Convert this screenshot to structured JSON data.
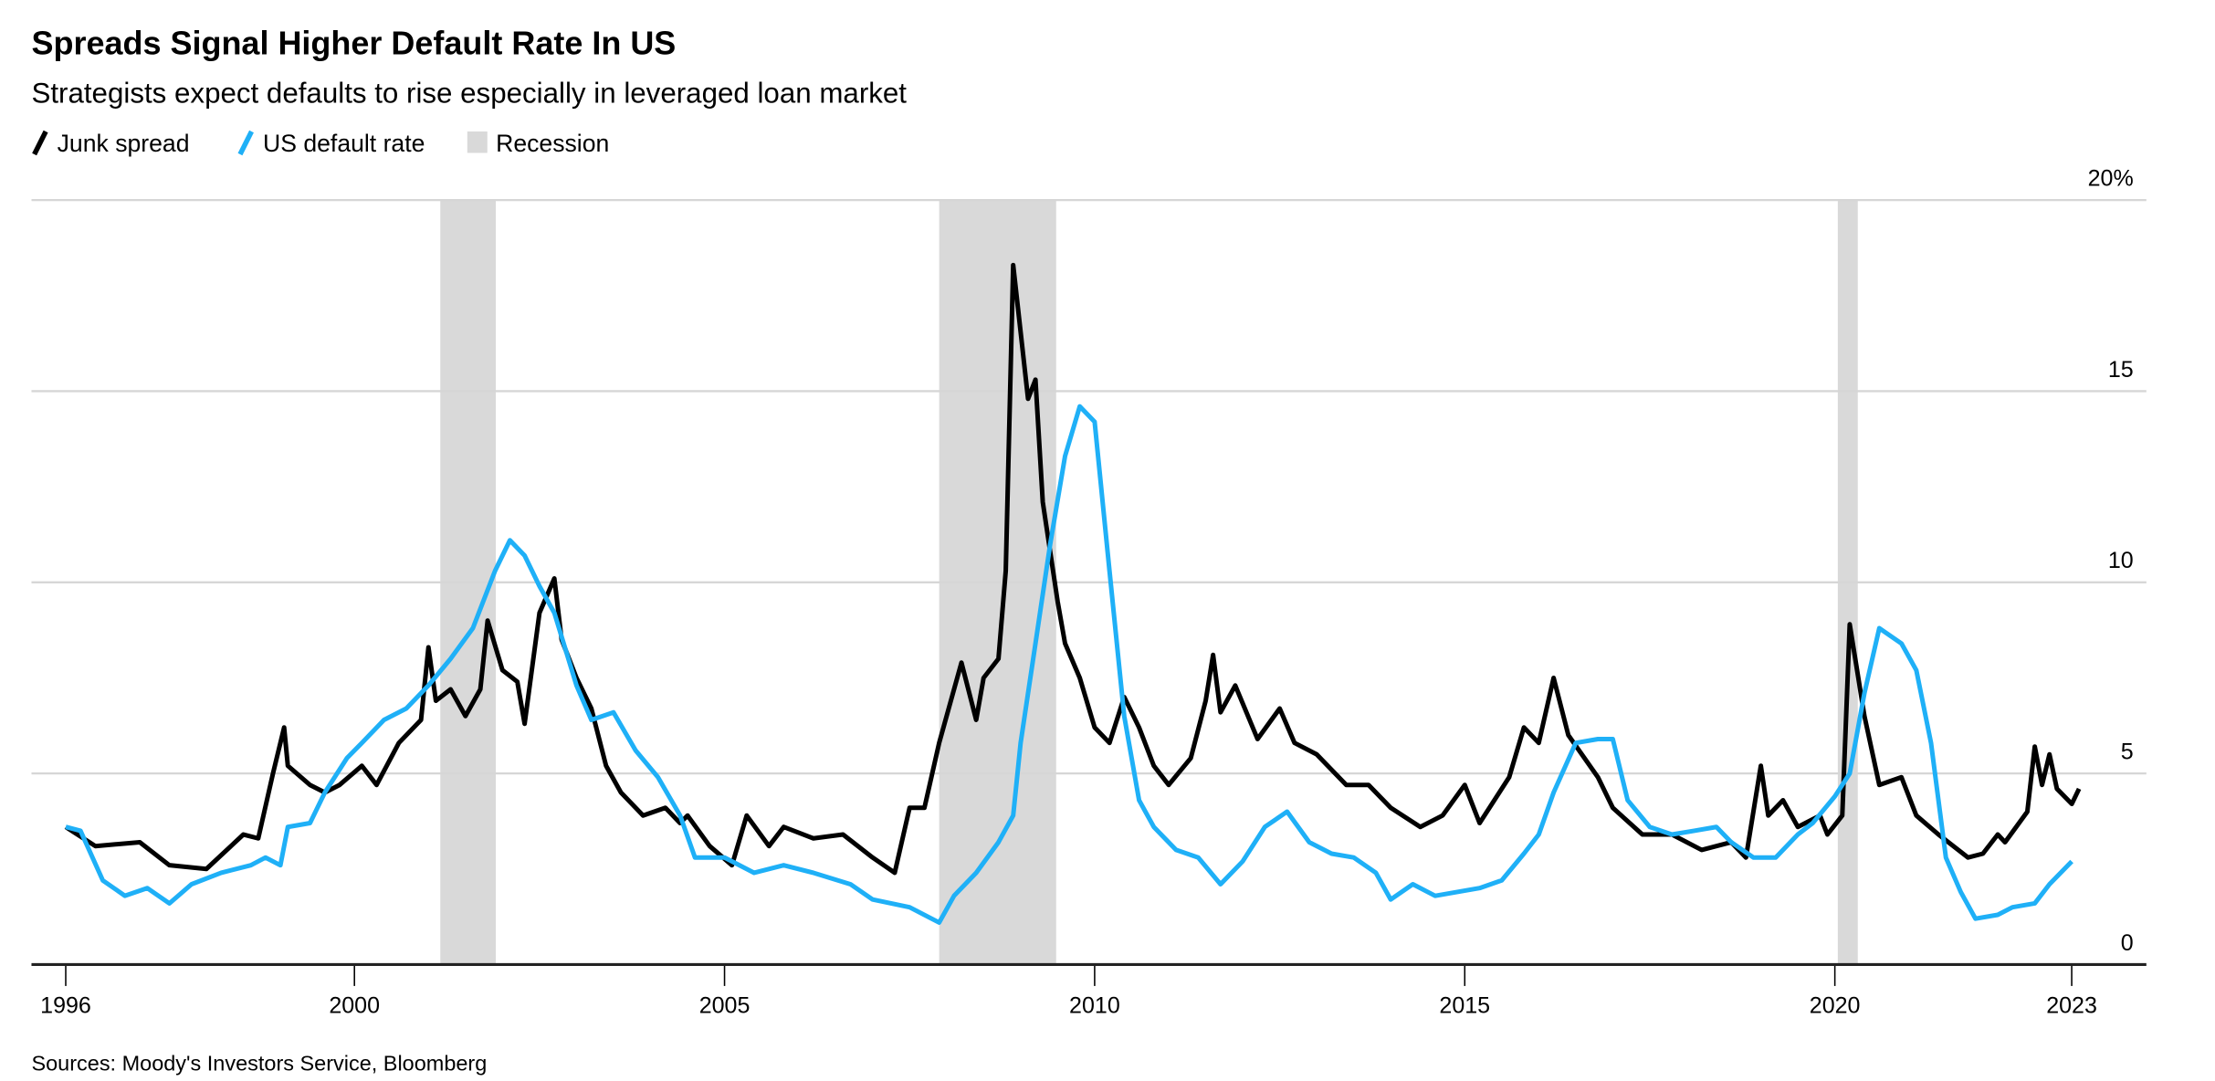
{
  "chart_data": {
    "type": "line",
    "title": "Spreads Signal Higher Default Rate In US",
    "subtitle": "Strategists expect defaults to rise especially in leveraged loan market",
    "legend": [
      "Junk spread",
      "US default rate",
      "Recession"
    ],
    "legend_placement": "top-left",
    "source": "Sources: Moody's Investors Service, Bloomberg",
    "ylim": [
      0,
      20
    ],
    "y_ticks": [
      {
        "value": 20,
        "label": "20%"
      },
      {
        "value": 15,
        "label": "15"
      },
      {
        "value": 10,
        "label": "10"
      },
      {
        "value": 5,
        "label": "5"
      },
      {
        "value": 0,
        "label": "0"
      }
    ],
    "x_ticks": [
      {
        "value": 1996.1,
        "label": "1996"
      },
      {
        "value": 2000,
        "label": "2000"
      },
      {
        "value": 2005,
        "label": "2005"
      },
      {
        "value": 2010,
        "label": "2010"
      },
      {
        "value": 2015,
        "label": "2015"
      },
      {
        "value": 2020,
        "label": "2020"
      },
      {
        "value": 2023.2,
        "label": "2023"
      }
    ],
    "grid": true,
    "colors": {
      "junk": "#000000",
      "default": "#1fb0f7",
      "recession": "#d9d9d9",
      "grid": "#d6d6d6"
    },
    "recessions": [
      [
        2001.16,
        2001.91
      ],
      [
        2007.9,
        2009.48
      ],
      [
        2020.04,
        2020.31
      ]
    ],
    "series": [
      {
        "name": "Junk spread",
        "key": "junk",
        "x": [
          1996.1,
          1996.5,
          1997.1,
          1997.5,
          1998.0,
          1998.5,
          1998.7,
          1998.9,
          1999.05,
          1999.1,
          1999.4,
          1999.6,
          1999.8,
          2000.1,
          2000.3,
          2000.6,
          2000.9,
          2001.0,
          2001.1,
          2001.3,
          2001.5,
          2001.7,
          2001.8,
          2002.0,
          2002.2,
          2002.3,
          2002.5,
          2002.7,
          2002.8,
          2003.0,
          2003.2,
          2003.4,
          2003.6,
          2003.9,
          2004.2,
          2004.4,
          2004.5,
          2004.8,
          2005.1,
          2005.3,
          2005.6,
          2005.8,
          2006.2,
          2006.6,
          2007.0,
          2007.3,
          2007.5,
          2007.7,
          2007.9,
          2008.2,
          2008.4,
          2008.5,
          2008.7,
          2008.8,
          2008.9,
          2009.1,
          2009.2,
          2009.3,
          2009.5,
          2009.6,
          2009.8,
          2010.0,
          2010.2,
          2010.4,
          2010.6,
          2010.8,
          2011.0,
          2011.3,
          2011.5,
          2011.6,
          2011.7,
          2011.9,
          2012.2,
          2012.5,
          2012.7,
          2013.0,
          2013.4,
          2013.7,
          2014.0,
          2014.4,
          2014.7,
          2015.0,
          2015.2,
          2015.6,
          2015.8,
          2016.0,
          2016.2,
          2016.4,
          2016.8,
          2017.0,
          2017.4,
          2017.8,
          2018.2,
          2018.6,
          2018.8,
          2019.0,
          2019.1,
          2019.3,
          2019.5,
          2019.8,
          2019.9,
          2020.1,
          2020.2,
          2020.4,
          2020.6,
          2020.9,
          2021.1,
          2021.4,
          2021.8,
          2022.0,
          2022.2,
          2022.3,
          2022.6,
          2022.7,
          2022.8,
          2022.9,
          2023.0,
          2023.2,
          2023.3
        ],
        "values": [
          3.6,
          3.1,
          3.2,
          2.6,
          2.5,
          3.4,
          3.3,
          5.0,
          6.2,
          5.2,
          4.7,
          4.5,
          4.7,
          5.2,
          4.7,
          5.8,
          6.4,
          8.3,
          6.9,
          7.2,
          6.5,
          7.2,
          9.0,
          7.7,
          7.4,
          6.3,
          9.2,
          10.1,
          8.5,
          7.5,
          6.7,
          5.2,
          4.5,
          3.9,
          4.1,
          3.7,
          3.9,
          3.1,
          2.6,
          3.9,
          3.1,
          3.6,
          3.3,
          3.4,
          2.8,
          2.4,
          4.1,
          4.1,
          5.8,
          7.9,
          6.4,
          7.5,
          8.0,
          10.3,
          18.3,
          14.8,
          15.3,
          12.1,
          9.5,
          8.4,
          7.5,
          6.2,
          5.8,
          7.0,
          6.2,
          5.2,
          4.7,
          5.4,
          6.9,
          8.1,
          6.6,
          7.3,
          5.9,
          6.7,
          5.8,
          5.5,
          4.7,
          4.7,
          4.1,
          3.6,
          3.9,
          4.7,
          3.7,
          4.9,
          6.2,
          5.8,
          7.5,
          6.0,
          4.9,
          4.1,
          3.4,
          3.4,
          3.0,
          3.2,
          2.8,
          5.2,
          3.9,
          4.3,
          3.6,
          3.9,
          3.4,
          3.9,
          8.9,
          6.5,
          4.7,
          4.9,
          3.9,
          3.4,
          2.8,
          2.9,
          3.4,
          3.2,
          4.0,
          5.7,
          4.7,
          5.5,
          4.6,
          4.2,
          4.6
        ]
      },
      {
        "name": "US default rate",
        "key": "default",
        "x": [
          1996.1,
          1996.3,
          1996.6,
          1996.9,
          1997.2,
          1997.5,
          1997.8,
          1998.2,
          1998.6,
          1998.8,
          1999.0,
          1999.1,
          1999.4,
          1999.6,
          1999.9,
          2000.1,
          2000.4,
          2000.7,
          2001.0,
          2001.3,
          2001.6,
          2001.9,
          2002.1,
          2002.3,
          2002.5,
          2002.7,
          2003.0,
          2003.2,
          2003.5,
          2003.8,
          2004.1,
          2004.4,
          2004.6,
          2005.0,
          2005.4,
          2005.8,
          2006.2,
          2006.7,
          2007.0,
          2007.5,
          2007.9,
          2008.1,
          2008.4,
          2008.7,
          2008.9,
          2009.0,
          2009.2,
          2009.4,
          2009.6,
          2009.8,
          2010.0,
          2010.2,
          2010.4,
          2010.6,
          2010.8,
          2011.1,
          2011.4,
          2011.7,
          2012.0,
          2012.3,
          2012.6,
          2012.9,
          2013.2,
          2013.5,
          2013.8,
          2014.0,
          2014.3,
          2014.6,
          2014.9,
          2015.2,
          2015.5,
          2015.8,
          2016.0,
          2016.2,
          2016.5,
          2016.8,
          2017.0,
          2017.2,
          2017.5,
          2017.8,
          2018.1,
          2018.4,
          2018.6,
          2018.9,
          2019.2,
          2019.5,
          2019.7,
          2020.0,
          2020.2,
          2020.4,
          2020.6,
          2020.9,
          2021.1,
          2021.3,
          2021.5,
          2021.7,
          2021.9,
          2022.2,
          2022.4,
          2022.7,
          2022.9,
          2023.2
        ],
        "values": [
          3.6,
          3.5,
          2.2,
          1.8,
          2.0,
          1.6,
          2.1,
          2.4,
          2.6,
          2.8,
          2.6,
          3.6,
          3.7,
          4.5,
          5.4,
          5.8,
          6.4,
          6.7,
          7.3,
          8.0,
          8.8,
          10.3,
          11.1,
          10.7,
          9.9,
          9.2,
          7.3,
          6.4,
          6.6,
          5.6,
          4.9,
          3.9,
          2.8,
          2.8,
          2.4,
          2.6,
          2.4,
          2.1,
          1.7,
          1.5,
          1.1,
          1.8,
          2.4,
          3.2,
          3.9,
          5.8,
          8.4,
          11.0,
          13.3,
          14.6,
          14.2,
          10.3,
          6.5,
          4.3,
          3.6,
          3.0,
          2.8,
          2.1,
          2.7,
          3.6,
          4.0,
          3.2,
          2.9,
          2.8,
          2.4,
          1.7,
          2.1,
          1.8,
          1.9,
          2.0,
          2.2,
          2.9,
          3.4,
          4.5,
          5.8,
          5.9,
          5.9,
          4.3,
          3.6,
          3.4,
          3.5,
          3.6,
          3.2,
          2.8,
          2.8,
          3.4,
          3.7,
          4.4,
          5.0,
          7.1,
          8.8,
          8.4,
          7.7,
          5.8,
          2.8,
          1.9,
          1.2,
          1.3,
          1.5,
          1.6,
          2.1,
          2.7
        ]
      }
    ]
  }
}
